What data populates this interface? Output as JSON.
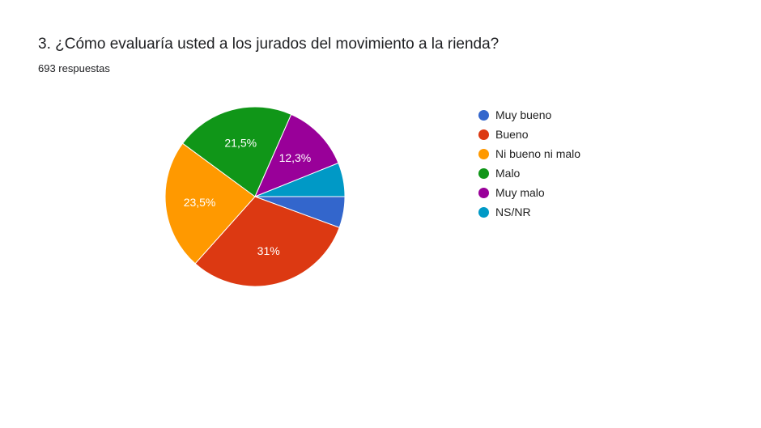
{
  "question": {
    "title": "3. ¿Cómo evaluaría usted a los jurados del movimiento a la rienda?",
    "responses": "693 respuestas"
  },
  "chart_data": {
    "type": "pie",
    "categories": [
      "Muy bueno",
      "Bueno",
      "Ni bueno ni malo",
      "Malo",
      "Muy malo",
      "NS/NR"
    ],
    "values": [
      5.6,
      31.0,
      23.5,
      21.5,
      12.3,
      6.1
    ],
    "data_labels": [
      "",
      "31%",
      "23,5%",
      "21,5%",
      "12,3%",
      ""
    ],
    "colors": [
      "#3366cc",
      "#dc3912",
      "#ff9900",
      "#109618",
      "#990099",
      "#0099c6"
    ],
    "legend_position": "right"
  }
}
